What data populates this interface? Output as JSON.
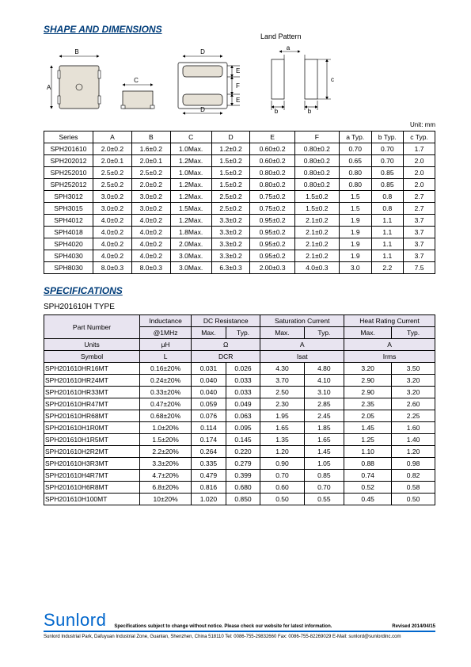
{
  "sections": {
    "shape_title": "SHAPE AND DIMENSIONS",
    "spec_title": "SPECIFICATIONS",
    "land_pattern": "Land Pattern",
    "unit": "Unit: mm",
    "spec_type": "SPH201610H TYPE"
  },
  "dim_labels": {
    "A": "A",
    "B": "B",
    "C": "C",
    "D": "D",
    "E": "E",
    "F": "F",
    "a": "a",
    "b": "b",
    "c": "c"
  },
  "dim_table": {
    "headers": [
      "Series",
      "A",
      "B",
      "C",
      "D",
      "E",
      "F",
      "a Typ.",
      "b Typ.",
      "c Typ."
    ],
    "rows": [
      [
        "SPH201610",
        "2.0±0.2",
        "1.6±0.2",
        "1.0Max.",
        "1.2±0.2",
        "0.60±0.2",
        "0.80±0.2",
        "0.70",
        "0.70",
        "1.7"
      ],
      [
        "SPH202012",
        "2.0±0.1",
        "2.0±0.1",
        "1.2Max.",
        "1.5±0.2",
        "0.60±0.2",
        "0.80±0.2",
        "0.65",
        "0.70",
        "2.0"
      ],
      [
        "SPH252010",
        "2.5±0.2",
        "2.5±0.2",
        "1.0Max.",
        "1.5±0.2",
        "0.80±0.2",
        "0.80±0.2",
        "0.80",
        "0.85",
        "2.0"
      ],
      [
        "SPH252012",
        "2.5±0.2",
        "2.0±0.2",
        "1.2Max.",
        "1.5±0.2",
        "0.80±0.2",
        "0.80±0.2",
        "0.80",
        "0.85",
        "2.0"
      ],
      [
        "SPH3012",
        "3.0±0.2",
        "3.0±0.2",
        "1.2Max.",
        "2.5±0.2",
        "0.75±0.2",
        "1.5±0.2",
        "1.5",
        "0.8",
        "2.7"
      ],
      [
        "SPH3015",
        "3.0±0.2",
        "3.0±0.2",
        "1.5Max.",
        "2.5±0.2",
        "0.75±0.2",
        "1.5±0.2",
        "1.5",
        "0.8",
        "2.7"
      ],
      [
        "SPH4012",
        "4.0±0.2",
        "4.0±0.2",
        "1.2Max.",
        "3.3±0.2",
        "0.95±0.2",
        "2.1±0.2",
        "1.9",
        "1.1",
        "3.7"
      ],
      [
        "SPH4018",
        "4.0±0.2",
        "4.0±0.2",
        "1.8Max.",
        "3.3±0.2",
        "0.95±0.2",
        "2.1±0.2",
        "1.9",
        "1.1",
        "3.7"
      ],
      [
        "SPH4020",
        "4.0±0.2",
        "4.0±0.2",
        "2.0Max.",
        "3.3±0.2",
        "0.95±0.2",
        "2.1±0.2",
        "1.9",
        "1.1",
        "3.7"
      ],
      [
        "SPH4030",
        "4.0±0.2",
        "4.0±0.2",
        "3.0Max.",
        "3.3±0.2",
        "0.95±0.2",
        "2.1±0.2",
        "1.9",
        "1.1",
        "3.7"
      ],
      [
        "SPH8030",
        "8.0±0.3",
        "8.0±0.3",
        "3.0Max.",
        "6.3±0.3",
        "2.00±0.3",
        "4.0±0.3",
        "3.0",
        "2.2",
        "7.5"
      ]
    ]
  },
  "spec_table": {
    "col_groups": [
      "Part Number",
      "Inductance",
      "DC Resistance",
      "Saturation Current",
      "Heat Rating Current"
    ],
    "sub_headers": [
      "@1MHz",
      "Max.",
      "Typ.",
      "Max.",
      "Typ.",
      "Max.",
      "Typ."
    ],
    "units_row": [
      "Units",
      "μH",
      "Ω",
      "A",
      "A"
    ],
    "symbol_row": [
      "Symbol",
      "L",
      "DCR",
      "Isat",
      "Irms"
    ],
    "rows": [
      [
        "SPH201610HR16MT",
        "0.16±20%",
        "0.031",
        "0.026",
        "4.30",
        "4.80",
        "3.20",
        "3.50"
      ],
      [
        "SPH201610HR24MT",
        "0.24±20%",
        "0.040",
        "0.033",
        "3.70",
        "4.10",
        "2.90",
        "3.20"
      ],
      [
        "SPH201610HR33MT",
        "0.33±20%",
        "0.040",
        "0.033",
        "2.50",
        "3.10",
        "2.90",
        "3.20"
      ],
      [
        "SPH201610HR47MT",
        "0.47±20%",
        "0.059",
        "0.049",
        "2.30",
        "2.85",
        "2.35",
        "2.60"
      ],
      [
        "SPH201610HR68MT",
        "0.68±20%",
        "0.076",
        "0.063",
        "1.95",
        "2.45",
        "2.05",
        "2.25"
      ],
      [
        "SPH201610H1R0MT",
        "1.0±20%",
        "0.114",
        "0.095",
        "1.65",
        "1.85",
        "1.45",
        "1.60"
      ],
      [
        "SPH201610H1R5MT",
        "1.5±20%",
        "0.174",
        "0.145",
        "1.35",
        "1.65",
        "1.25",
        "1.40"
      ],
      [
        "SPH201610H2R2MT",
        "2.2±20%",
        "0.264",
        "0.220",
        "1.20",
        "1.45",
        "1.10",
        "1.20"
      ],
      [
        "SPH201610H3R3MT",
        "3.3±20%",
        "0.335",
        "0.279",
        "0.90",
        "1.05",
        "0.88",
        "0.98"
      ],
      [
        "SPH201610H4R7MT",
        "4.7±20%",
        "0.479",
        "0.399",
        "0.70",
        "0.85",
        "0.74",
        "0.82"
      ],
      [
        "SPH201610H6R8MT",
        "6.8±20%",
        "0.816",
        "0.680",
        "0.60",
        "0.70",
        "0.52",
        "0.58"
      ],
      [
        "SPH201610H100MT",
        "10±20%",
        "1.020",
        "0.850",
        "0.50",
        "0.55",
        "0.45",
        "0.50"
      ]
    ]
  },
  "footer": {
    "brand": "Sunlord",
    "note": "Specifications subject to change without notice. Please check our website for latest information.",
    "revised": "Revised 2014/04/15",
    "addr": "Sunlord Industrial Park, Dafuyuan Industrial Zone, Guanlan, Shenzhen, China 518110 Tel: 0086-755-29832660 Fax: 0086-755-82269029 E-Mail: sunlord@sunlordinc.com"
  }
}
